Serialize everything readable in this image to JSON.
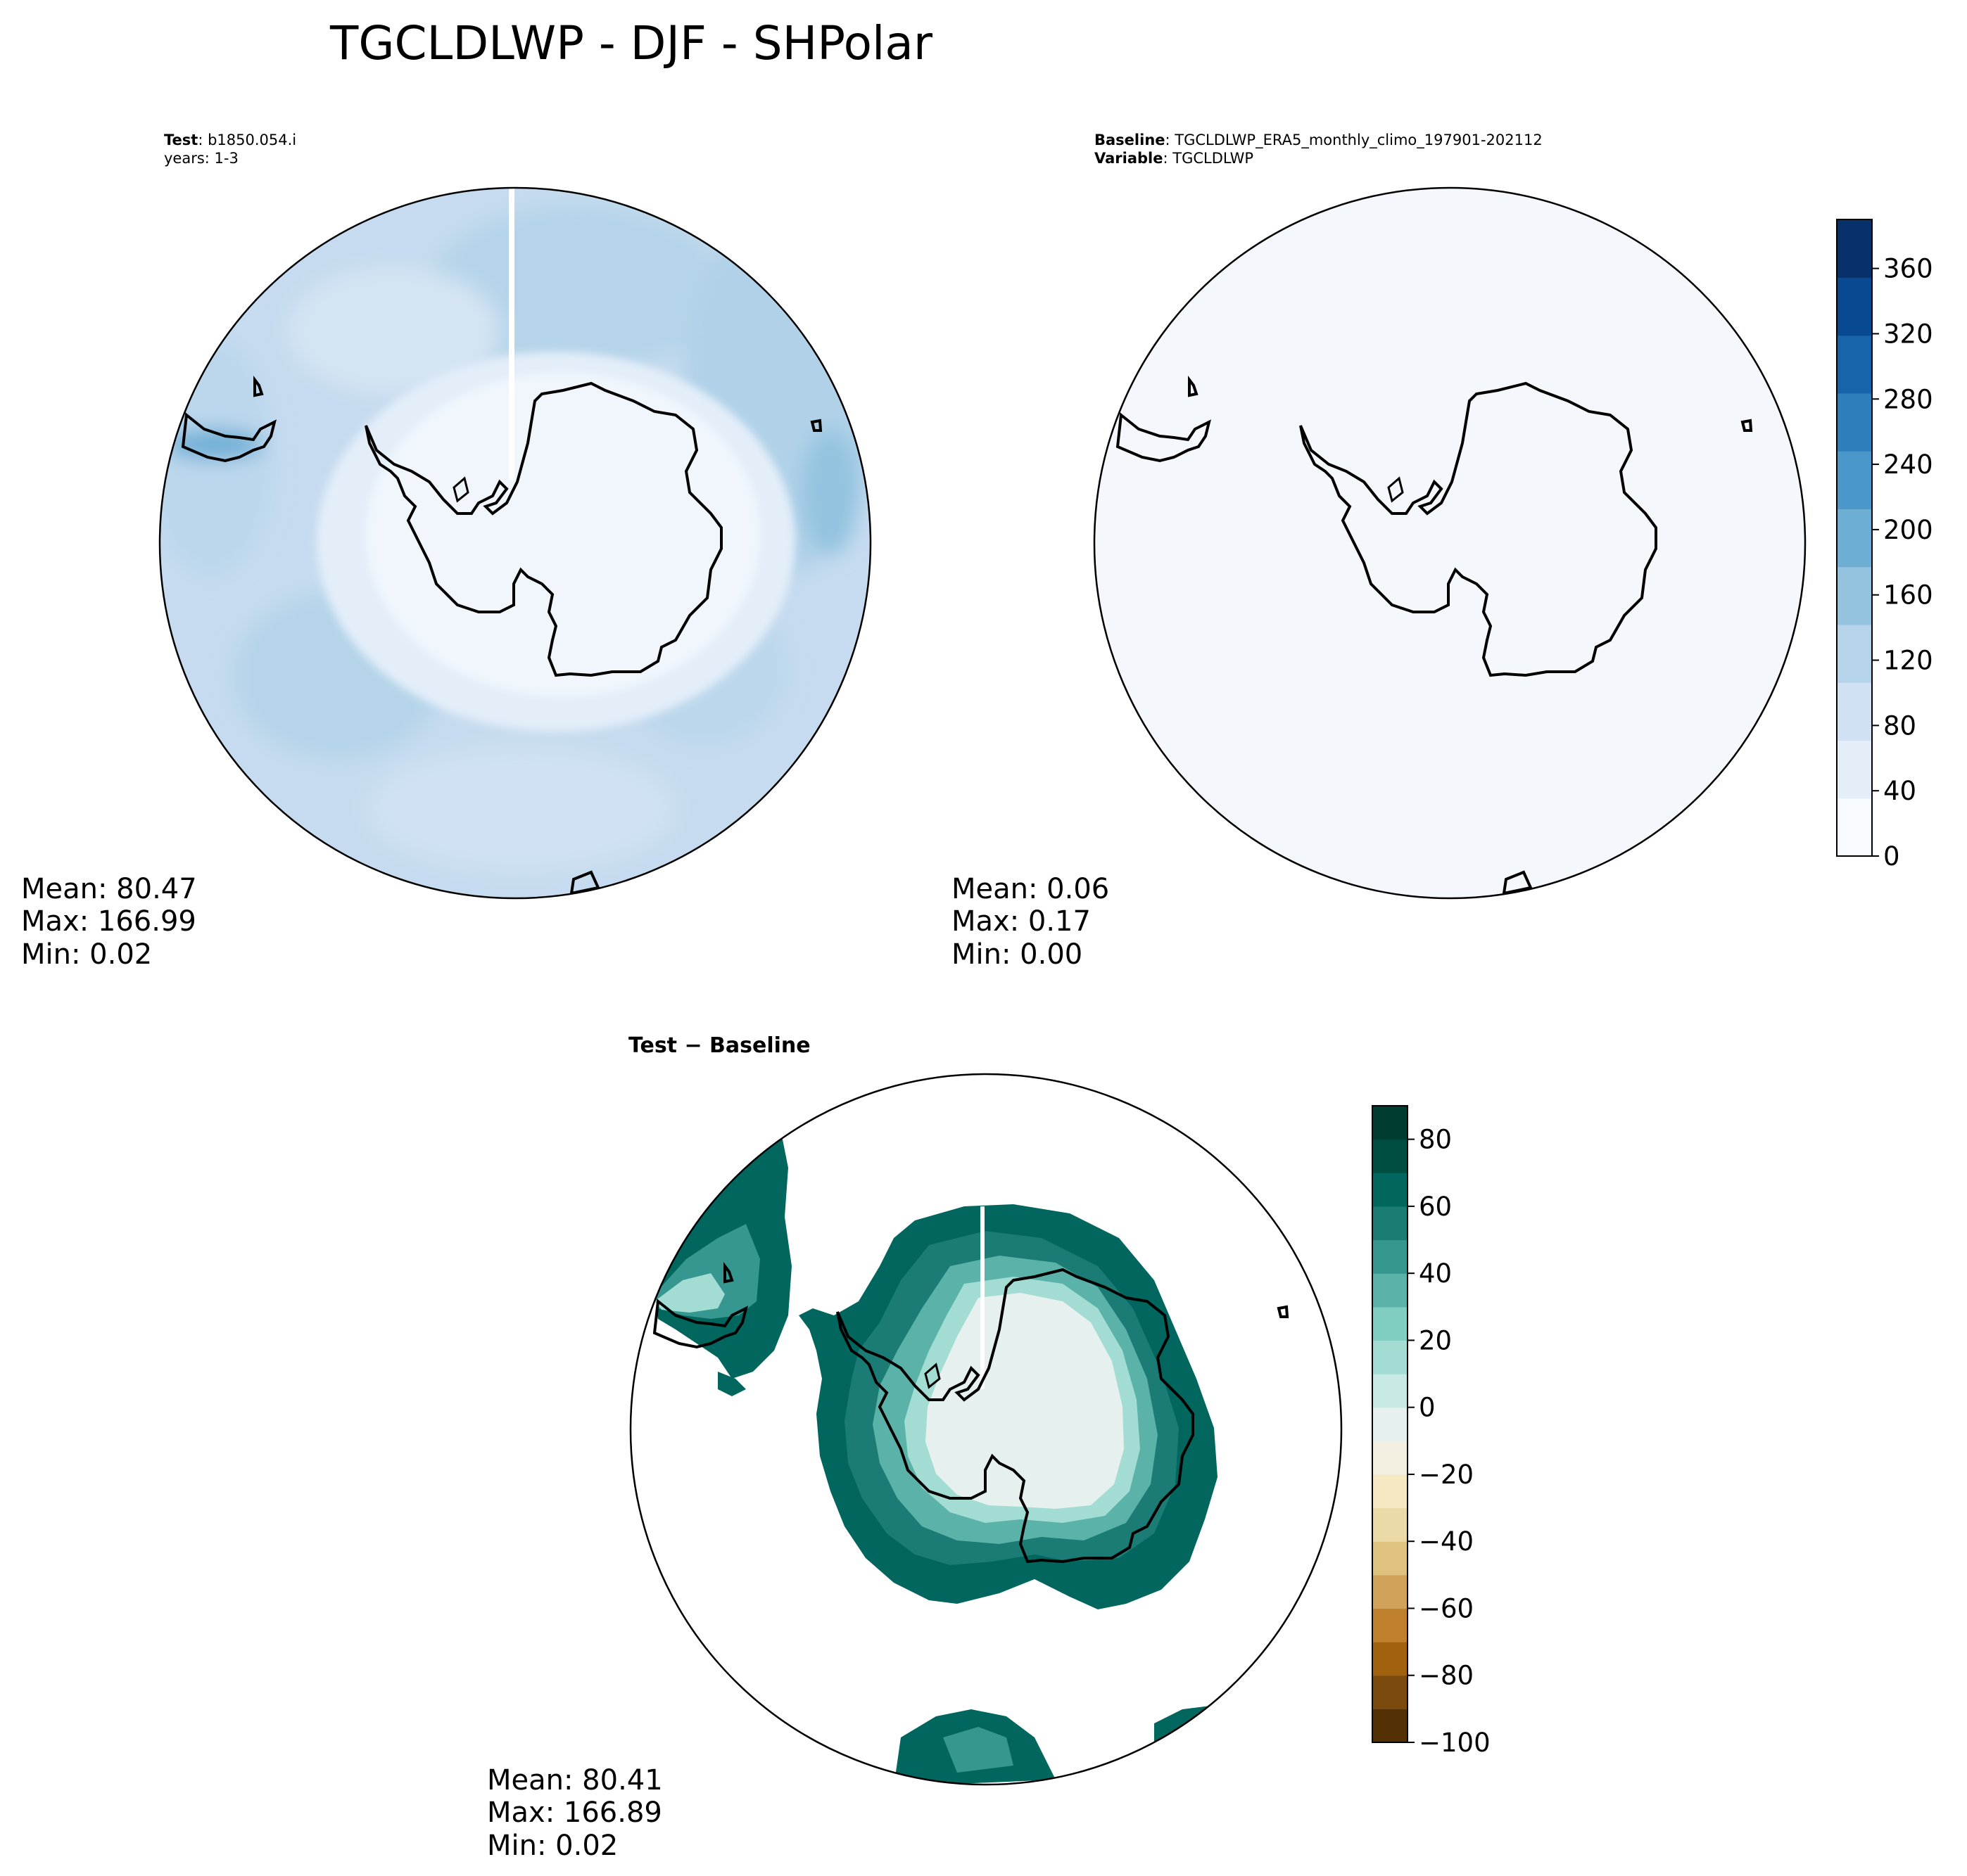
{
  "figure": {
    "title": "TGCLDLWP - DJF - SHPolar"
  },
  "panels": {
    "test": {
      "label1_key": "Test",
      "label1_value": ": b1850.054.i",
      "label2": "years: 1-3",
      "stats": {
        "mean": "Mean: 80.47",
        "max": "Max: 166.99",
        "min": "Min:  0.02"
      }
    },
    "baseline": {
      "label1_key": "Baseline",
      "label1_value": ": TGCLDLWP_ERA5_monthly_climo_197901-202112",
      "label2_key": "Variable",
      "label2_value": ": TGCLDLWP",
      "stats": {
        "mean": "Mean:  0.06",
        "max": "Max:  0.17",
        "min": "Min:  0.00"
      }
    },
    "diff": {
      "title": "Test − Baseline",
      "stats": {
        "mean": "Mean: 80.41",
        "max": "Max: 166.89",
        "min": "Min:  0.02"
      }
    }
  },
  "colors": {
    "blues": [
      "#f7fbff",
      "#e3eef9",
      "#cfe1f2",
      "#b5d4e9",
      "#93c3df",
      "#6daed5",
      "#4b97c9",
      "#2f7ebc",
      "#1764ab",
      "#084a91",
      "#08306b"
    ],
    "brbg": [
      "#543005",
      "#7b4a0d",
      "#a0620f",
      "#bf812d",
      "#d0a25a",
      "#dfc27d",
      "#ecd9a8",
      "#f6e8c3",
      "#f3f0e2",
      "#e6f1ef",
      "#c7eae5",
      "#a2dcd3",
      "#80cdc1",
      "#5ab2a8",
      "#35978f",
      "#1a7c74",
      "#01665e",
      "#004d42",
      "#003c30"
    ],
    "test_fill": "#c6dbef",
    "baseline_fill": "#f4f8fc",
    "diff_high": "#01665e",
    "diff_low": "#e6f1ef"
  },
  "chart_data": [
    {
      "type": "heatmap",
      "name": "test",
      "projection": "south-polar-stereographic",
      "colorbar": {
        "ticks": [
          0,
          40,
          80,
          120,
          160,
          200,
          240,
          280,
          320,
          360
        ],
        "labels": [
          "0",
          "40",
          "80",
          "120",
          "160",
          "200",
          "240",
          "280",
          "320",
          "360"
        ],
        "range": [
          0,
          390
        ]
      },
      "stats": {
        "mean": 80.47,
        "max": 166.99,
        "min": 0.02
      }
    },
    {
      "type": "heatmap",
      "name": "baseline",
      "projection": "south-polar-stereographic",
      "stats": {
        "mean": 0.06,
        "max": 0.17,
        "min": 0.0
      }
    },
    {
      "type": "heatmap",
      "name": "diff",
      "projection": "south-polar-stereographic",
      "colorbar": {
        "ticks": [
          80,
          60,
          40,
          20,
          0,
          -20,
          -40,
          -60,
          -80,
          -100
        ],
        "labels": [
          "80",
          "60",
          "40",
          "20",
          "0",
          "−20",
          "−40",
          "−60",
          "−80",
          "−100"
        ],
        "range": [
          -100,
          90
        ]
      },
      "stats": {
        "mean": 80.41,
        "max": 166.89,
        "min": 0.02
      }
    }
  ]
}
